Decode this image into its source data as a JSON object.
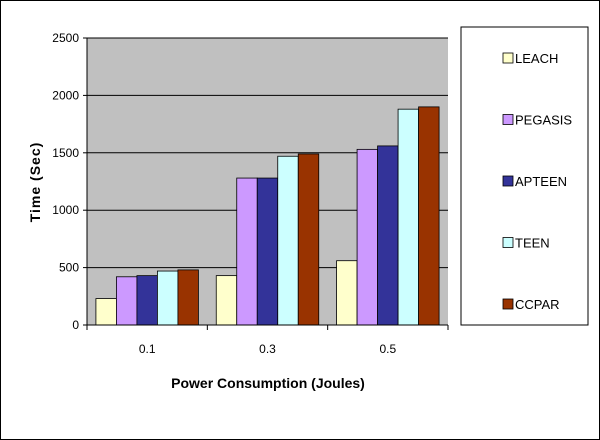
{
  "chart_data": {
    "type": "bar",
    "categories": [
      "0.1",
      "0.3",
      "0.5"
    ],
    "series": [
      {
        "name": "LEACH",
        "color": "#FFFFCC",
        "values": [
          230,
          430,
          560
        ]
      },
      {
        "name": "PEGASIS",
        "color": "#CC99FF",
        "values": [
          420,
          1280,
          1530
        ]
      },
      {
        "name": "APTEEN",
        "color": "#333399",
        "values": [
          430,
          1280,
          1560
        ]
      },
      {
        "name": "TEEN",
        "color": "#CCFFFF",
        "values": [
          470,
          1470,
          1880
        ]
      },
      {
        "name": "CCPAR",
        "color": "#993300",
        "values": [
          480,
          1490,
          1900
        ]
      }
    ],
    "xlabel": "Power Consumption (Joules)",
    "ylabel": "Time (Sec)",
    "ylim": [
      0,
      2500
    ],
    "yticks": [
      "0",
      "500",
      "1000",
      "1500",
      "2000",
      "2500"
    ],
    "grid": true,
    "plot_background": "#C0C0C0",
    "legend_position": "right"
  }
}
